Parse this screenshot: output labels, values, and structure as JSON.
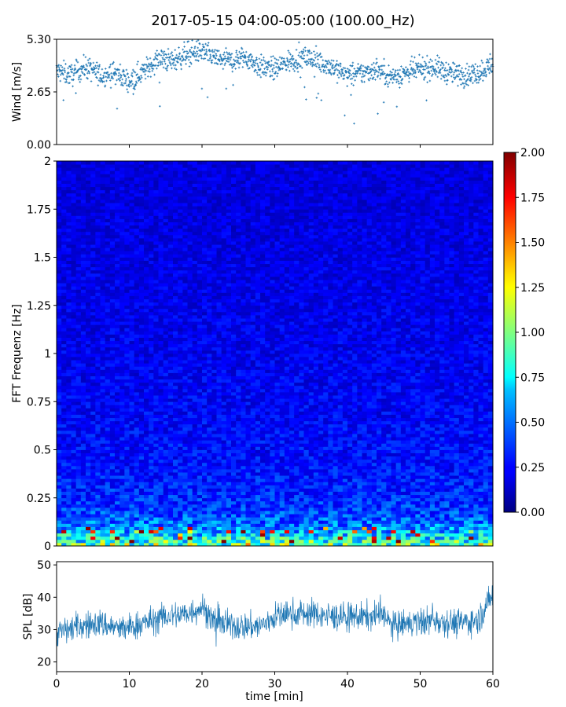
{
  "title": "2017-05-15 04:00-05:00 (100.00_Hz)",
  "chart_data": [
    {
      "type": "scatter",
      "panel": "wind",
      "title": "",
      "xlabel": "",
      "ylabel": "Wind [m/s]",
      "xlim": [
        0,
        60
      ],
      "ylim": [
        0,
        5.3
      ],
      "yticks": [
        "0.00",
        "2.65",
        "5.30"
      ],
      "series": [
        {
          "values": [
            {
              "x": 0,
              "y": 3.7
            },
            {
              "x": 2,
              "y": 3.5
            },
            {
              "x": 4,
              "y": 3.9
            },
            {
              "x": 6,
              "y": 3.5
            },
            {
              "x": 8,
              "y": 3.6
            },
            {
              "x": 10,
              "y": 3.2
            },
            {
              "x": 12,
              "y": 3.7
            },
            {
              "x": 14,
              "y": 4.3
            },
            {
              "x": 16,
              "y": 4.2
            },
            {
              "x": 18,
              "y": 4.6
            },
            {
              "x": 20,
              "y": 4.7
            },
            {
              "x": 22,
              "y": 4.3
            },
            {
              "x": 24,
              "y": 4.2
            },
            {
              "x": 26,
              "y": 4.4
            },
            {
              "x": 28,
              "y": 3.9
            },
            {
              "x": 30,
              "y": 3.8
            },
            {
              "x": 32,
              "y": 4.2
            },
            {
              "x": 34,
              "y": 4.4
            },
            {
              "x": 36,
              "y": 4.2
            },
            {
              "x": 38,
              "y": 3.9
            },
            {
              "x": 40,
              "y": 3.5
            },
            {
              "x": 42,
              "y": 3.6
            },
            {
              "x": 44,
              "y": 3.8
            },
            {
              "x": 46,
              "y": 3.4
            },
            {
              "x": 48,
              "y": 3.6
            },
            {
              "x": 50,
              "y": 3.8
            },
            {
              "x": 52,
              "y": 3.9
            },
            {
              "x": 54,
              "y": 3.6
            },
            {
              "x": 56,
              "y": 3.5
            },
            {
              "x": 58,
              "y": 3.6
            },
            {
              "x": 60,
              "y": 4.1
            }
          ],
          "color": "#1f77b4"
        }
      ]
    },
    {
      "type": "heatmap",
      "panel": "spectrogram",
      "title": "",
      "xlabel": "",
      "ylabel": "FFT Frequenz [Hz]",
      "xlim": [
        0,
        60
      ],
      "ylim": [
        0,
        2
      ],
      "yticks": [
        "0",
        "0.25",
        "0.5",
        "0.75",
        "1",
        "1.25",
        "1.5",
        "1.75",
        "2"
      ],
      "colormap": "jet",
      "colorbar": {
        "range": [
          0,
          2
        ],
        "ticks": [
          "0.00",
          "0.25",
          "0.50",
          "0.75",
          "1.00",
          "1.25",
          "1.50",
          "1.75",
          "2.00"
        ]
      },
      "mean_intensity_by_freq": [
        {
          "f": 0.0,
          "v": 1.0
        },
        {
          "f": 0.05,
          "v": 0.7
        },
        {
          "f": 0.1,
          "v": 0.5
        },
        {
          "f": 0.2,
          "v": 0.35
        },
        {
          "f": 0.4,
          "v": 0.28
        },
        {
          "f": 0.75,
          "v": 0.24
        },
        {
          "f": 1.0,
          "v": 0.22
        },
        {
          "f": 1.5,
          "v": 0.2
        },
        {
          "f": 2.0,
          "v": 0.18
        }
      ]
    },
    {
      "type": "line",
      "panel": "spl",
      "title": "",
      "xlabel": "time [min]",
      "ylabel": "SPL [dB]",
      "xlim": [
        0,
        60
      ],
      "ylim": [
        17,
        51
      ],
      "xticks": [
        "0",
        "10",
        "20",
        "30",
        "40",
        "50",
        "60"
      ],
      "yticks": [
        "20",
        "30",
        "40",
        "50"
      ],
      "series": [
        {
          "values": [
            {
              "x": 0,
              "y": 29
            },
            {
              "x": 3,
              "y": 31
            },
            {
              "x": 6,
              "y": 32
            },
            {
              "x": 9,
              "y": 30
            },
            {
              "x": 12,
              "y": 32
            },
            {
              "x": 15,
              "y": 34
            },
            {
              "x": 18,
              "y": 35
            },
            {
              "x": 20,
              "y": 37
            },
            {
              "x": 22,
              "y": 32
            },
            {
              "x": 25,
              "y": 31
            },
            {
              "x": 28,
              "y": 31
            },
            {
              "x": 30,
              "y": 34
            },
            {
              "x": 32,
              "y": 35
            },
            {
              "x": 35,
              "y": 35
            },
            {
              "x": 38,
              "y": 34
            },
            {
              "x": 40,
              "y": 34
            },
            {
              "x": 43,
              "y": 34
            },
            {
              "x": 45,
              "y": 35
            },
            {
              "x": 46,
              "y": 31
            },
            {
              "x": 49,
              "y": 32
            },
            {
              "x": 52,
              "y": 33
            },
            {
              "x": 55,
              "y": 32
            },
            {
              "x": 58,
              "y": 33
            },
            {
              "x": 60,
              "y": 41
            }
          ],
          "color": "#1f77b4"
        }
      ]
    }
  ]
}
